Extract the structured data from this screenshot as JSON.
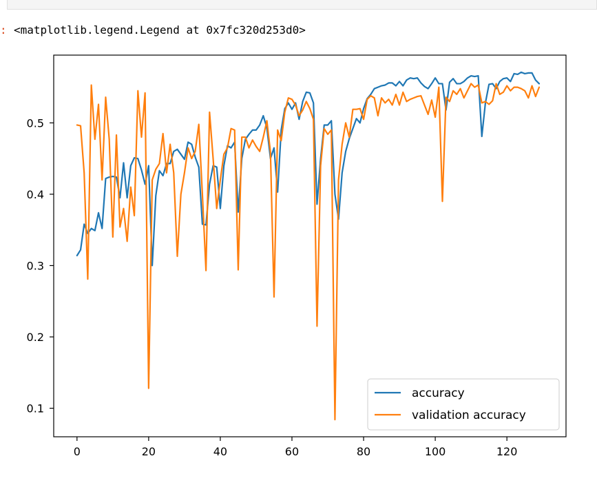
{
  "output": {
    "prompt_marker": ":",
    "text": "<matplotlib.legend.Legend at 0x7fc320d253d0>"
  },
  "chart_data": {
    "type": "line",
    "title": "",
    "xlabel": "",
    "ylabel": "",
    "xlim": [
      -6.5,
      136.5
    ],
    "ylim": [
      0.06,
      0.595
    ],
    "xticks": [
      0,
      20,
      40,
      60,
      80,
      100,
      120
    ],
    "yticks": [
      0.1,
      0.2,
      0.3,
      0.4,
      0.5
    ],
    "ytick_labels": [
      "0.1",
      "0.2",
      "0.3",
      "0.4",
      "0.5"
    ],
    "grid": false,
    "legend_location": "lower right",
    "series": [
      {
        "name": "accuracy",
        "color": "#1f77b4",
        "values": [
          0.314,
          0.322,
          0.358,
          0.345,
          0.352,
          0.349,
          0.374,
          0.352,
          0.422,
          0.424,
          0.425,
          0.424,
          0.395,
          0.444,
          0.395,
          0.44,
          0.451,
          0.45,
          0.434,
          0.414,
          0.44,
          0.3,
          0.398,
          0.433,
          0.426,
          0.443,
          0.443,
          0.46,
          0.463,
          0.456,
          0.449,
          0.473,
          0.47,
          0.452,
          0.438,
          0.358,
          0.357,
          0.414,
          0.44,
          0.438,
          0.38,
          0.44,
          0.468,
          0.465,
          0.473,
          0.375,
          0.45,
          0.477,
          0.484,
          0.49,
          0.49,
          0.497,
          0.51,
          0.493,
          0.45,
          0.465,
          0.403,
          0.49,
          0.52,
          0.528,
          0.519,
          0.528,
          0.505,
          0.53,
          0.543,
          0.542,
          0.528,
          0.386,
          0.45,
          0.497,
          0.497,
          0.503,
          0.4,
          0.365,
          0.43,
          0.46,
          0.478,
          0.492,
          0.506,
          0.5,
          0.52,
          0.534,
          0.54,
          0.548,
          0.55,
          0.552,
          0.553,
          0.556,
          0.556,
          0.552,
          0.558,
          0.552,
          0.56,
          0.563,
          0.562,
          0.563,
          0.556,
          0.551,
          0.548,
          0.555,
          0.563,
          0.555,
          0.555,
          0.518,
          0.557,
          0.562,
          0.555,
          0.555,
          0.558,
          0.563,
          0.566,
          0.565,
          0.566,
          0.481,
          0.528,
          0.554,
          0.555,
          0.548,
          0.558,
          0.562,
          0.563,
          0.558,
          0.569,
          0.568,
          0.571,
          0.569,
          0.57,
          0.57,
          0.56,
          0.555
        ]
      },
      {
        "name": "validation accuracy",
        "color": "#ff7f0e",
        "values": [
          0.497,
          0.496,
          0.43,
          0.281,
          0.553,
          0.477,
          0.526,
          0.42,
          0.536,
          0.477,
          0.34,
          0.483,
          0.354,
          0.38,
          0.334,
          0.41,
          0.37,
          0.545,
          0.48,
          0.542,
          0.128,
          0.42,
          0.435,
          0.443,
          0.485,
          0.43,
          0.47,
          0.43,
          0.313,
          0.4,
          0.43,
          0.465,
          0.45,
          0.46,
          0.498,
          0.4,
          0.293,
          0.515,
          0.45,
          0.38,
          0.42,
          0.456,
          0.465,
          0.492,
          0.49,
          0.294,
          0.48,
          0.48,
          0.465,
          0.476,
          0.467,
          0.46,
          0.48,
          0.503,
          0.459,
          0.256,
          0.49,
          0.475,
          0.515,
          0.535,
          0.533,
          0.525,
          0.51,
          0.518,
          0.53,
          0.52,
          0.505,
          0.215,
          0.44,
          0.492,
          0.484,
          0.49,
          0.084,
          0.42,
          0.47,
          0.5,
          0.48,
          0.519,
          0.519,
          0.52,
          0.505,
          0.533,
          0.538,
          0.535,
          0.51,
          0.535,
          0.528,
          0.533,
          0.525,
          0.54,
          0.525,
          0.543,
          0.53,
          0.533,
          0.535,
          0.537,
          0.538,
          0.525,
          0.512,
          0.532,
          0.508,
          0.55,
          0.39,
          0.536,
          0.53,
          0.545,
          0.54,
          0.548,
          0.535,
          0.545,
          0.555,
          0.55,
          0.553,
          0.528,
          0.53,
          0.526,
          0.531,
          0.555,
          0.54,
          0.543,
          0.552,
          0.545,
          0.55,
          0.55,
          0.548,
          0.545,
          0.535,
          0.552,
          0.537,
          0.55
        ]
      }
    ]
  }
}
